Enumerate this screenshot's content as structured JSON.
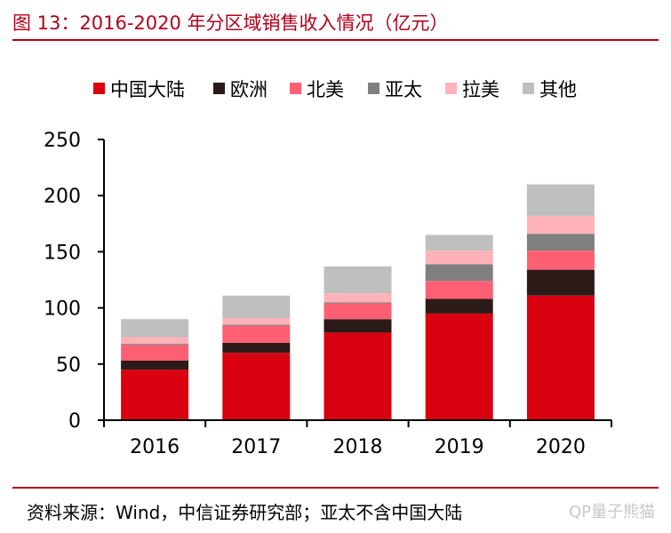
{
  "figure_title": "图 13：2016-2020 年分区域销售收入情况（亿元）",
  "source_note": "资料来源：Wind，中信证券研究部；亚太不含中国大陆",
  "watermark": "QP量子熊猫",
  "colors": {
    "title_red": "#b3001b",
    "axis": "#000000"
  },
  "chart_data": {
    "type": "bar",
    "stacked": true,
    "categories": [
      "2016",
      "2017",
      "2018",
      "2019",
      "2020"
    ],
    "ylim": [
      0,
      250
    ],
    "yticks": [
      0,
      50,
      100,
      150,
      200,
      250
    ],
    "grid": false,
    "legend_position": "top",
    "xlabel": "",
    "ylabel": "",
    "series": [
      {
        "name": "中国大陆",
        "color": "#d9000f",
        "values": [
          45,
          60,
          78,
          95,
          111
        ]
      },
      {
        "name": "欧洲",
        "color": "#2b1a17",
        "values": [
          8,
          9,
          12,
          13,
          23
        ]
      },
      {
        "name": "北美",
        "color": "#ff5f73",
        "values": [
          14,
          15,
          14,
          16,
          17
        ]
      },
      {
        "name": "亚太",
        "color": "#7f7f7f",
        "values": [
          1,
          1,
          1,
          15,
          15
        ]
      },
      {
        "name": "拉美",
        "color": "#ffb3b8",
        "values": [
          6,
          6,
          8,
          12,
          16
        ]
      },
      {
        "name": "其他",
        "color": "#bfbfbf",
        "values": [
          16,
          20,
          24,
          14,
          28
        ]
      }
    ]
  }
}
